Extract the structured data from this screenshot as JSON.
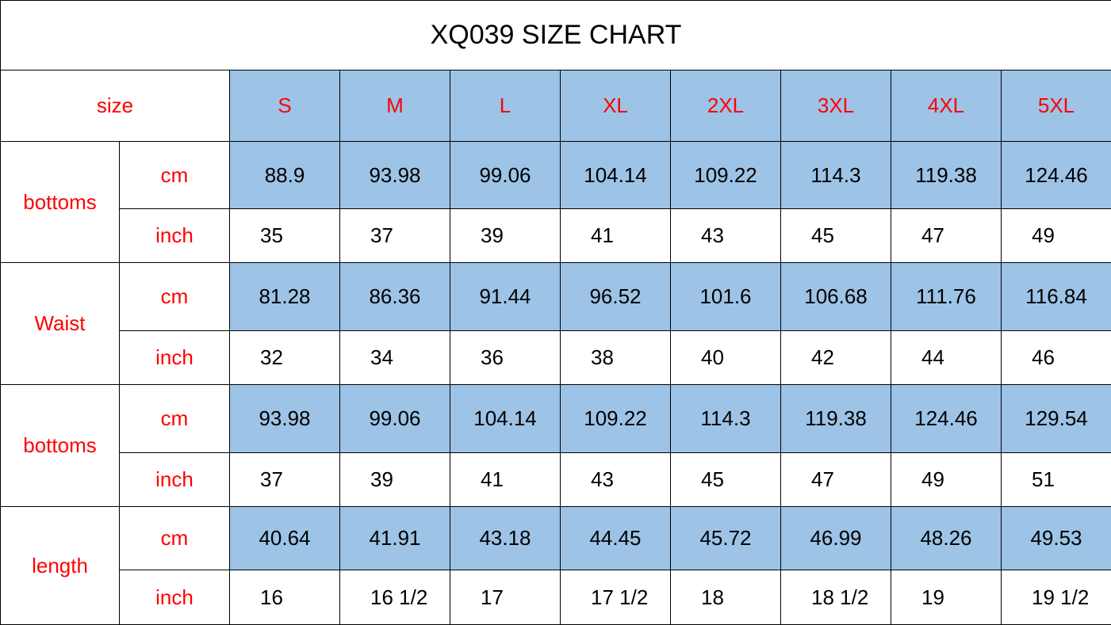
{
  "title": "XQ039 SIZE CHART",
  "header_label": "size",
  "sizes": [
    "S",
    "M",
    "L",
    "XL",
    "2XL",
    "3XL",
    "4XL",
    "5XL"
  ],
  "colors": {
    "label_text": "#ff0000",
    "highlight_fill": "#9dc3e6"
  },
  "groups": [
    {
      "name": "bottoms",
      "rows": [
        {
          "unit": "cm",
          "values": [
            "88.9",
            "93.98",
            "99.06",
            "104.14",
            "109.22",
            "114.3",
            "119.38",
            "124.46"
          ]
        },
        {
          "unit": "inch",
          "values": [
            "35",
            "37",
            "39",
            "41",
            "43",
            "45",
            "47",
            "49"
          ]
        }
      ]
    },
    {
      "name": "Waist",
      "rows": [
        {
          "unit": "cm",
          "values": [
            "81.28",
            "86.36",
            "91.44",
            "96.52",
            "101.6",
            "106.68",
            "111.76",
            "116.84"
          ]
        },
        {
          "unit": "inch",
          "values": [
            "32",
            "34",
            "36",
            "38",
            "40",
            "42",
            "44",
            "46"
          ]
        }
      ]
    },
    {
      "name": "bottoms",
      "rows": [
        {
          "unit": "cm",
          "values": [
            "93.98",
            "99.06",
            "104.14",
            "109.22",
            "114.3",
            "119.38",
            "124.46",
            "129.54"
          ]
        },
        {
          "unit": "inch",
          "values": [
            "37",
            "39",
            "41",
            "43",
            "45",
            "47",
            "49",
            "51"
          ]
        }
      ]
    },
    {
      "name": "length",
      "rows": [
        {
          "unit": "cm",
          "values": [
            "40.64",
            "41.91",
            "43.18",
            "44.45",
            "45.72",
            "46.99",
            "48.26",
            "49.53"
          ]
        },
        {
          "unit": "inch",
          "values": [
            "16",
            "16 1/2",
            "17",
            "17 1/2",
            "18",
            "18 1/2",
            "19",
            "19 1/2"
          ]
        }
      ]
    }
  ]
}
